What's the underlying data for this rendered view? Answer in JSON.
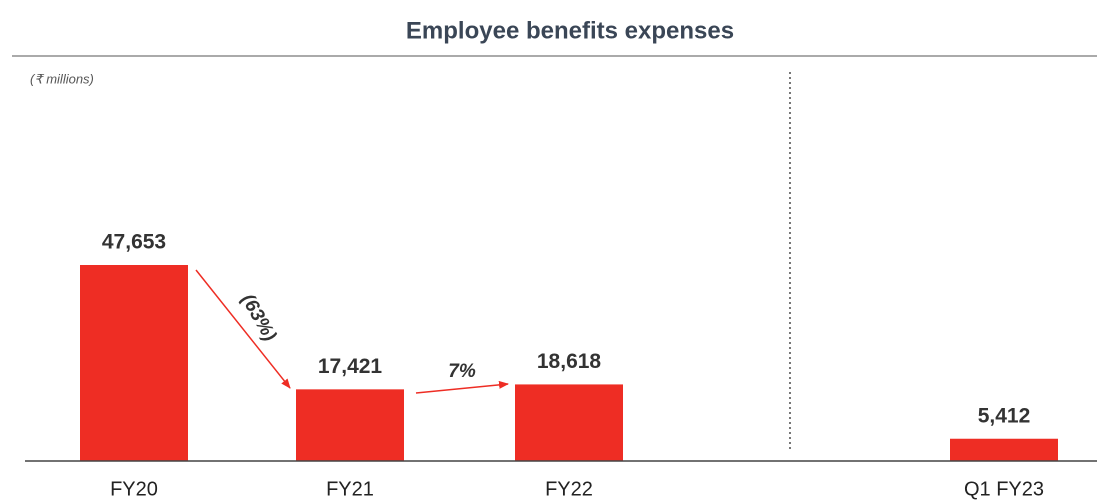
{
  "chart_data": {
    "type": "bar",
    "title": "Employee benefits expenses",
    "subtitle": "(₹ millions)",
    "categories": [
      "FY20",
      "FY21",
      "FY22",
      "Q1 FY23"
    ],
    "values": [
      47653,
      17421,
      18618,
      5412
    ],
    "value_labels": [
      "47,653",
      "17,421",
      "18,618",
      "5,412"
    ],
    "color": "#ee2d24",
    "annotations": [
      "(63%)",
      "7%"
    ]
  }
}
